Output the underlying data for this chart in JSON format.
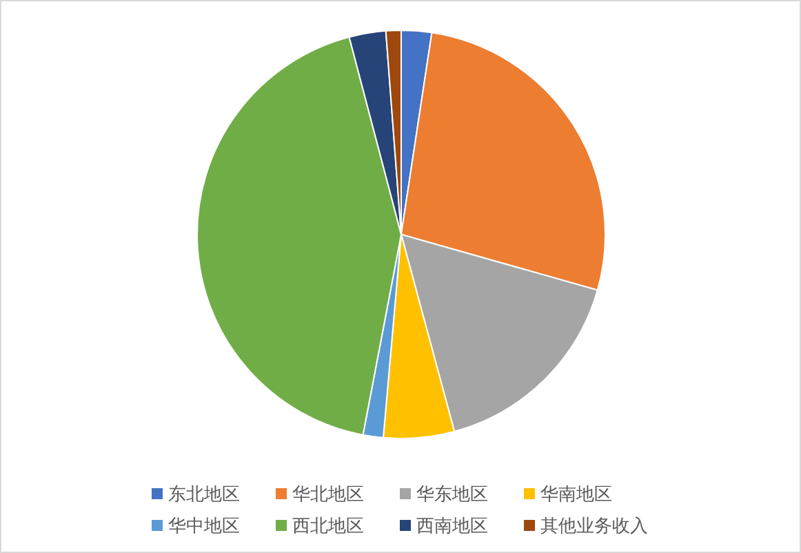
{
  "chart_data": {
    "type": "pie",
    "categories": [
      "东北地区",
      "华北地区",
      "华东地区",
      "华南地区",
      "华中地区",
      "西北地区",
      "西南地区",
      "其他业务收入"
    ],
    "values": [
      2.4,
      27.0,
      16.4,
      5.6,
      1.6,
      42.9,
      2.9,
      1.2
    ],
    "colors": [
      "#4472c4",
      "#ed7d31",
      "#a5a5a5",
      "#ffc000",
      "#5b9bd5",
      "#70ad47",
      "#264478",
      "#9e480e"
    ],
    "legend": "bottom"
  }
}
